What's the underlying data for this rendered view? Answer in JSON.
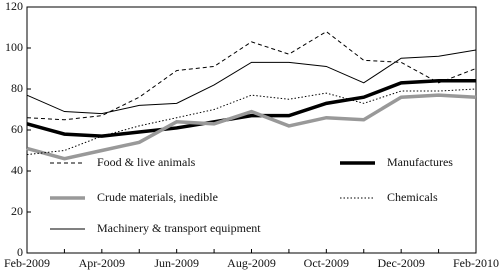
{
  "chart_data": {
    "type": "line",
    "categories": [
      "Feb-2009",
      null,
      "Apr-2009",
      null,
      "Jun-2009",
      null,
      "Aug-2009",
      null,
      "Oct-2009",
      null,
      "Dec-2009",
      null,
      "Feb-2010"
    ],
    "ylim": [
      0,
      120
    ],
    "yticks": [
      0,
      20,
      40,
      60,
      80,
      100,
      120
    ],
    "series": [
      {
        "name": "Food & live animals",
        "color": "#000000",
        "style": "dashed",
        "width": 1,
        "values": [
          66,
          65,
          67,
          76,
          89,
          91,
          103,
          97,
          108,
          94,
          93,
          83,
          90
        ]
      },
      {
        "name": "Manufactures",
        "color": "#000000",
        "style": "solid",
        "width": 3.5,
        "values": [
          63,
          58,
          57,
          59,
          61,
          64,
          67,
          67,
          73,
          76,
          83,
          84,
          84
        ]
      },
      {
        "name": "Crude materials, inedible",
        "color": "#999999",
        "style": "solid",
        "width": 3.5,
        "values": [
          51,
          46,
          50,
          54,
          64,
          63,
          69,
          62,
          66,
          65,
          76,
          77,
          76
        ]
      },
      {
        "name": "Chemicals",
        "color": "#000000",
        "style": "dotted",
        "width": 1,
        "values": [
          48,
          50,
          57,
          62,
          66,
          70,
          77,
          75,
          78,
          73,
          79,
          79,
          80
        ]
      },
      {
        "name": "Machinery & transport equipment",
        "color": "#000000",
        "style": "solid",
        "width": 1,
        "values": [
          77,
          69,
          68,
          72,
          73,
          82,
          93,
          93,
          91,
          83,
          95,
          96,
          99
        ]
      }
    ]
  }
}
